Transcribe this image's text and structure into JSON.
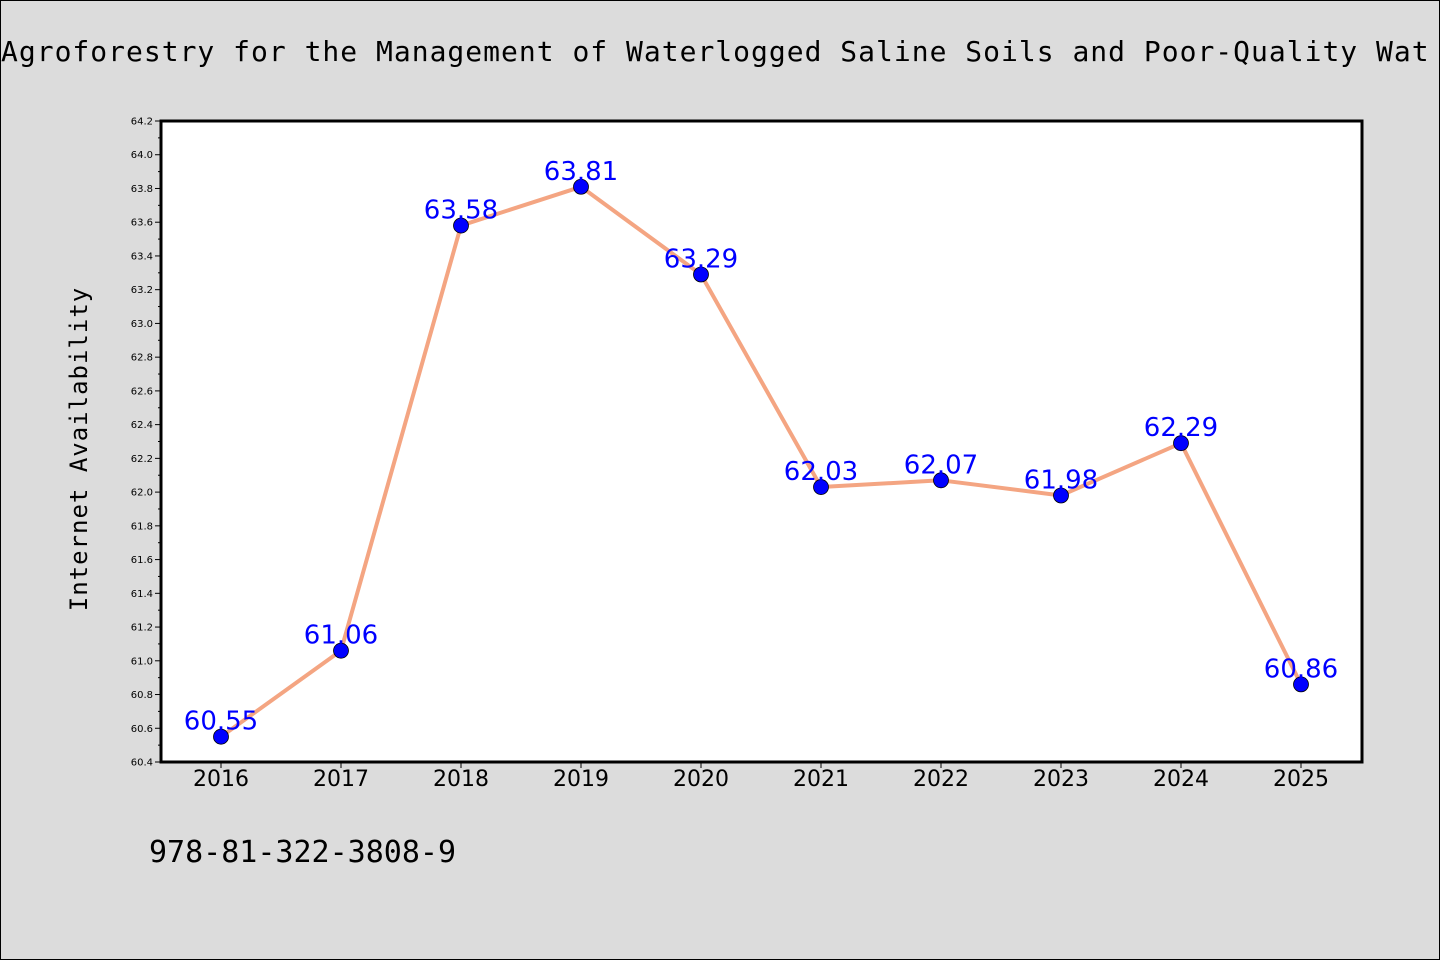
{
  "chart_data": {
    "type": "line",
    "title": "Agroforestry for the Management of Waterlogged Saline Soils and Poor-Quality Wat",
    "xlabel": "",
    "ylabel": "Internet Availability",
    "categories": [
      "2016",
      "2017",
      "2018",
      "2019",
      "2020",
      "2021",
      "2022",
      "2023",
      "2024",
      "2025"
    ],
    "values": [
      60.55,
      61.06,
      63.58,
      63.81,
      63.29,
      62.03,
      62.07,
      61.98,
      62.29,
      60.86
    ],
    "data_labels": [
      "60.55",
      "61.06",
      "63.58",
      "63.81",
      "63.29",
      "62.03",
      "62.07",
      "61.98",
      "62.29",
      "60.86"
    ],
    "ylim": [
      60.4,
      64.2
    ],
    "yticks": [
      "60.4",
      "60.6",
      "60.8",
      "61.0",
      "61.2",
      "61.4",
      "61.6",
      "61.8",
      "62.0",
      "62.2",
      "62.4",
      "62.6",
      "62.8",
      "63.0",
      "63.2",
      "63.4",
      "63.6",
      "63.8",
      "64.0",
      "64.2"
    ],
    "grid": false,
    "line_color": "#f4a582",
    "marker_color": "#0000ff",
    "label_color": "#0000ff"
  },
  "footer": {
    "isbn": "978-81-322-3808-9"
  }
}
